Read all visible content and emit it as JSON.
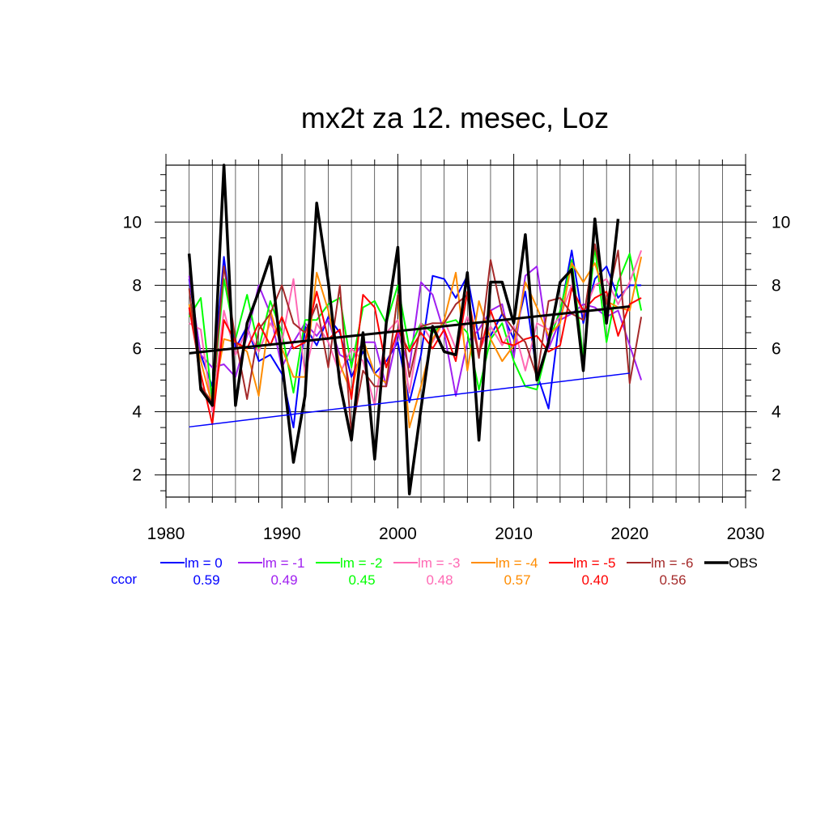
{
  "chart_data": {
    "type": "line",
    "title": "mx2t za 12. mesec, Loz",
    "xlim": [
      1980,
      2030
    ],
    "ylim": [
      1.3,
      11.8
    ],
    "x_ticks": [
      "1980",
      "1990",
      "2000",
      "2010",
      "2020",
      "2030"
    ],
    "y_ticks": [
      "2",
      "4",
      "6",
      "8",
      "10"
    ],
    "grid": true,
    "legend_placement": "bottom",
    "ccor_label": "ccor",
    "series": [
      {
        "name": "lm = 0",
        "color": "#0000ff",
        "ccor": "0.59",
        "width": 2,
        "x": [
          1982,
          1983,
          1984,
          1985,
          1986,
          1987,
          1988,
          1989,
          1990,
          1991,
          1992,
          1993,
          1994,
          1995,
          1996,
          1997,
          1998,
          1999,
          2000,
          2001,
          2002,
          2003,
          2004,
          2005,
          2006,
          2007,
          2008,
          2009,
          2010,
          2011,
          2012,
          2013,
          2014,
          2015,
          2016,
          2017,
          2018,
          2019,
          2020,
          2021
        ],
        "y": [
          8.2,
          5.8,
          4.8,
          8.9,
          6.0,
          6.7,
          5.6,
          5.8,
          5.2,
          3.5,
          6.7,
          6.1,
          7.0,
          6.5,
          5.1,
          5.9,
          5.2,
          5.6,
          6.2,
          4.3,
          5.8,
          8.3,
          8.2,
          7.6,
          8.3,
          6.3,
          6.4,
          7.1,
          6.3,
          7.8,
          5.2,
          4.1,
          7.1,
          9.1,
          6.8,
          8.2,
          8.6,
          7.6,
          8.0,
          8.0
        ]
      },
      {
        "name": "lm = -1",
        "color": "#a020f0",
        "ccor": "0.49",
        "width": 2,
        "x": [
          1982,
          1983,
          1984,
          1985,
          1986,
          1987,
          1988,
          1989,
          1990,
          1991,
          1992,
          1993,
          1994,
          1995,
          1996,
          1997,
          1998,
          1999,
          2000,
          2001,
          2002,
          2003,
          2004,
          2005,
          2006,
          2007,
          2008,
          2009,
          2010,
          2011,
          2012,
          2013,
          2014,
          2015,
          2016,
          2017,
          2018,
          2019,
          2020,
          2021
        ],
        "y": [
          8.3,
          5.8,
          5.4,
          5.5,
          5.1,
          6.4,
          8.0,
          7.1,
          5.4,
          6.2,
          6.8,
          6.4,
          6.9,
          5.8,
          5.6,
          6.2,
          6.2,
          4.8,
          6.5,
          5.4,
          8.1,
          7.7,
          6.5,
          4.5,
          6.2,
          6.6,
          7.2,
          7.4,
          5.7,
          8.3,
          8.6,
          6.0,
          6.9,
          7.1,
          7.4,
          7.3,
          7.0,
          7.2,
          6.1,
          5.0
        ]
      },
      {
        "name": "lm = -2",
        "color": "#00ff00",
        "ccor": "0.45",
        "width": 2,
        "x": [
          1982,
          1983,
          1984,
          1985,
          1986,
          1987,
          1988,
          1989,
          1990,
          1991,
          1992,
          1993,
          1994,
          1995,
          1996,
          1997,
          1998,
          1999,
          2000,
          2001,
          2002,
          2003,
          2004,
          2005,
          2006,
          2007,
          2008,
          2009,
          2010,
          2011,
          2012,
          2013,
          2014,
          2015,
          2016,
          2017,
          2018,
          2019,
          2020,
          2021
        ],
        "y": [
          7.0,
          7.6,
          4.3,
          8.2,
          6.3,
          7.7,
          6.0,
          7.5,
          6.5,
          4.6,
          6.9,
          6.9,
          7.4,
          7.6,
          5.4,
          7.3,
          7.5,
          6.8,
          8.0,
          6.0,
          6.8,
          6.5,
          6.8,
          6.9,
          6.5,
          4.7,
          6.3,
          6.8,
          5.6,
          4.8,
          4.7,
          6.2,
          7.2,
          8.8,
          5.7,
          9.2,
          6.2,
          8.1,
          9.0,
          7.2
        ]
      },
      {
        "name": "lm = -3",
        "color": "#ff69b4",
        "ccor": "0.48",
        "width": 2,
        "x": [
          1982,
          1983,
          1984,
          1985,
          1986,
          1987,
          1988,
          1989,
          1990,
          1991,
          1992,
          1993,
          1994,
          1995,
          1996,
          1997,
          1998,
          1999,
          2000,
          2001,
          2002,
          2003,
          2004,
          2005,
          2006,
          2007,
          2008,
          2009,
          2010,
          2011,
          2012,
          2013,
          2014,
          2015,
          2016,
          2017,
          2018,
          2019,
          2020,
          2021
        ],
        "y": [
          6.8,
          6.6,
          4.0,
          7.2,
          5.8,
          6.6,
          5.9,
          6.8,
          6.2,
          8.2,
          5.2,
          6.8,
          6.2,
          5.2,
          6.0,
          5.6,
          4.2,
          6.5,
          6.9,
          4.6,
          6.8,
          6.2,
          6.9,
          6.0,
          7.0,
          5.9,
          6.7,
          6.1,
          6.7,
          5.3,
          6.8,
          6.6,
          7.0,
          8.0,
          7.1,
          8.0,
          8.2,
          7.4,
          8.1,
          9.1
        ]
      },
      {
        "name": "lm = -4",
        "color": "#ff8c00",
        "ccor": "0.57",
        "width": 2,
        "x": [
          1982,
          1983,
          1984,
          1985,
          1986,
          1987,
          1988,
          1989,
          1990,
          1991,
          1992,
          1993,
          1994,
          1995,
          1996,
          1997,
          1998,
          1999,
          2000,
          2001,
          2002,
          2003,
          2004,
          2005,
          2006,
          2007,
          2008,
          2009,
          2010,
          2011,
          2012,
          2013,
          2014,
          2015,
          2016,
          2017,
          2018,
          2019,
          2020,
          2021
        ],
        "y": [
          7.4,
          5.6,
          4.2,
          6.3,
          6.2,
          5.9,
          4.5,
          7.2,
          6.0,
          5.1,
          5.1,
          8.4,
          7.2,
          5.5,
          4.6,
          6.3,
          5.2,
          4.9,
          7.7,
          3.5,
          4.8,
          6.3,
          6.9,
          8.4,
          5.3,
          7.5,
          6.3,
          5.6,
          6.1,
          8.1,
          7.3,
          6.4,
          6.8,
          8.7,
          8.1,
          8.7,
          7.5,
          7.3,
          7.2,
          8.9
        ]
      },
      {
        "name": "lm = -5",
        "color": "#ff0000",
        "ccor": "0.40",
        "width": 2,
        "x": [
          1982,
          1983,
          1984,
          1985,
          1986,
          1987,
          1988,
          1989,
          1990,
          1991,
          1992,
          1993,
          1994,
          1995,
          1996,
          1997,
          1998,
          1999,
          2000,
          2001,
          2002,
          2003,
          2004,
          2005,
          2006,
          2007,
          2008,
          2009,
          2010,
          2011,
          2012,
          2013,
          2014,
          2015,
          2016,
          2017,
          2018,
          2019,
          2020,
          2021
        ],
        "y": [
          7.3,
          5.2,
          3.6,
          6.9,
          6.2,
          6.0,
          6.8,
          6.1,
          7.0,
          6.0,
          6.2,
          7.8,
          6.3,
          6.6,
          4.4,
          7.7,
          7.3,
          5.4,
          6.6,
          5.9,
          6.5,
          6.0,
          6.6,
          5.6,
          7.8,
          5.8,
          7.2,
          6.2,
          6.1,
          6.3,
          6.4,
          5.9,
          6.1,
          7.9,
          7.2,
          7.6,
          7.8,
          6.4,
          7.4,
          7.6
        ]
      },
      {
        "name": "lm = -6",
        "color": "#a52a2a",
        "ccor": "0.56",
        "width": 2,
        "x": [
          1982,
          1983,
          1984,
          1985,
          1986,
          1987,
          1988,
          1989,
          1990,
          1991,
          1992,
          1993,
          1994,
          1995,
          1996,
          1997,
          1998,
          1999,
          2000,
          2001,
          2002,
          2003,
          2004,
          2005,
          2006,
          2007,
          2008,
          2009,
          2010,
          2011,
          2012,
          2013,
          2014,
          2015,
          2016,
          2017,
          2018,
          2019,
          2020,
          2021
        ],
        "y": [
          7.9,
          4.8,
          4.3,
          8.6,
          6.3,
          4.4,
          6.6,
          7.1,
          8.0,
          6.8,
          6.5,
          7.4,
          5.4,
          8.0,
          3.3,
          5.3,
          4.8,
          4.8,
          7.7,
          5.1,
          6.7,
          6.8,
          6.8,
          7.4,
          7.7,
          5.7,
          8.8,
          7.1,
          6.6,
          6.2,
          5.1,
          7.5,
          7.6,
          7.1,
          6.9,
          9.3,
          7.4,
          9.1,
          4.9,
          7.0
        ]
      },
      {
        "name": "OBS",
        "color": "#000000",
        "ccor": "",
        "width": 3.5,
        "x": [
          1982,
          1983,
          1984,
          1985,
          1986,
          1987,
          1988,
          1989,
          1990,
          1991,
          1992,
          1993,
          1994,
          1995,
          1996,
          1997,
          1998,
          1999,
          2000,
          2001,
          2002,
          2003,
          2004,
          2005,
          2006,
          2007,
          2008,
          2009,
          2010,
          2011,
          2012,
          2013,
          2014,
          2015,
          2016,
          2017,
          2018,
          2019
        ],
        "y": [
          9.0,
          4.7,
          4.2,
          11.8,
          4.2,
          6.8,
          7.8,
          8.9,
          5.6,
          2.4,
          4.5,
          10.6,
          8.1,
          4.9,
          3.1,
          6.5,
          2.5,
          6.8,
          9.2,
          1.4,
          4.1,
          6.7,
          5.9,
          5.8,
          8.4,
          3.1,
          8.1,
          8.1,
          6.8,
          9.6,
          5.0,
          6.2,
          8.1,
          8.5,
          5.3,
          10.1,
          6.8,
          10.1
        ]
      }
    ],
    "trend_lines": [
      {
        "name": "lm = 0 trend",
        "color": "#0000ff",
        "width": 1.5,
        "x": [
          1982,
          2020
        ],
        "y": [
          3.52,
          5.22
        ]
      },
      {
        "name": "OBS trend",
        "color": "#000000",
        "width": 3,
        "x": [
          1982,
          2020
        ],
        "y": [
          5.85,
          7.33
        ]
      }
    ]
  }
}
